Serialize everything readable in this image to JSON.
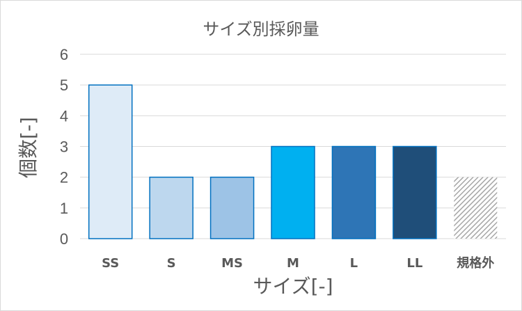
{
  "chart_data": {
    "type": "bar",
    "title": "サイズ別採卵量",
    "xlabel": "サイズ[-]",
    "ylabel": "個数[-]",
    "categories": [
      "SS",
      "S",
      "MS",
      "M",
      "L",
      "LL",
      "規格外"
    ],
    "values": [
      5,
      2,
      2,
      3,
      3,
      3,
      2
    ],
    "ylim": [
      0,
      6
    ],
    "yticks": [
      0,
      1,
      2,
      3,
      4,
      5,
      6
    ],
    "grid": true,
    "legend": "none",
    "bar_colors": [
      "#deebf7",
      "#bdd7ee",
      "#9dc3e6",
      "#00b0f0",
      "#2e75b6",
      "#1f4e79",
      "hatched-gray"
    ],
    "bar_border_color": "#0070c0"
  }
}
